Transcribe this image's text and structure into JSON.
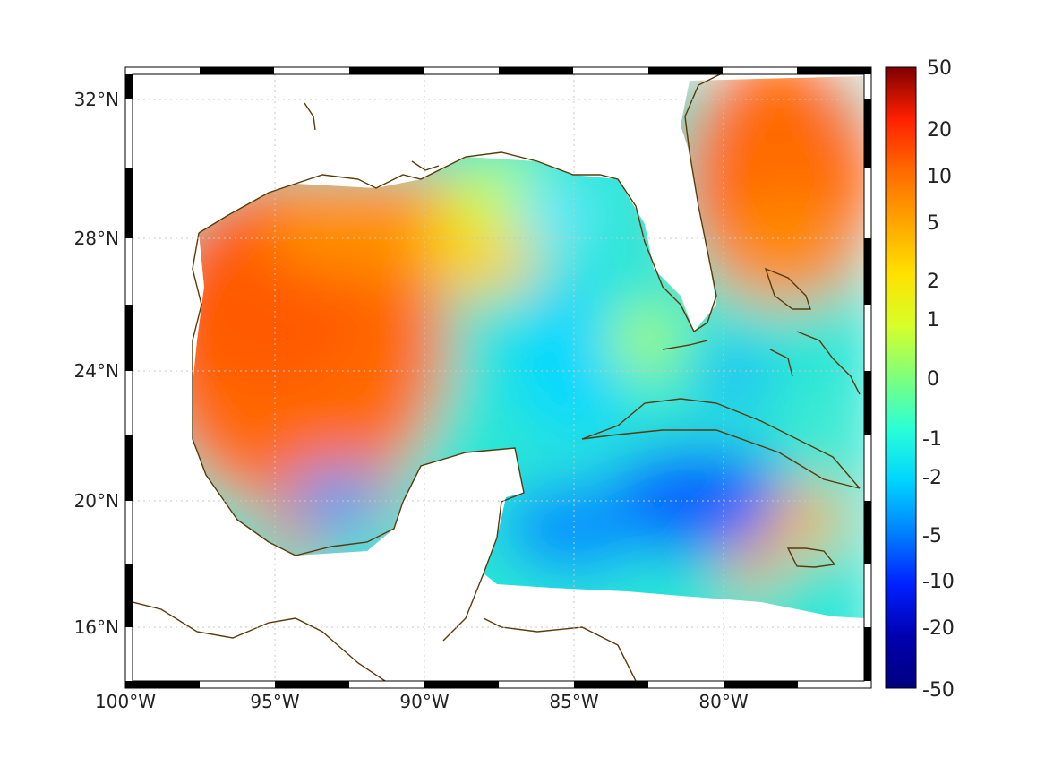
{
  "map": {
    "region": "Gulf of Mexico and Caribbean",
    "lon_range": [
      -100,
      -75
    ],
    "lat_range": [
      14.2,
      33
    ],
    "lon_ticks": [
      "100°W",
      "95°W",
      "90°W",
      "85°W",
      "80°W"
    ],
    "lat_ticks": [
      "32°N",
      "28°N",
      "24°N",
      "20°N",
      "16°N"
    ],
    "grid": true,
    "colormap": "jet",
    "coastline_color": "#5a3a0a",
    "land_color": "#ffffff"
  },
  "colorbar": {
    "labels": [
      "50",
      "20",
      "10",
      "5",
      "2",
      "1",
      "0",
      "-1",
      "-2",
      "-5",
      "-10",
      "-20",
      "-50"
    ],
    "colors": [
      "#800000",
      "#ff2000",
      "#ff6a00",
      "#ffa500",
      "#ffe100",
      "#d6ff29",
      "#7dff7d",
      "#29ffd6",
      "#00d4ff",
      "#0080ff",
      "#0020ff",
      "#0000b0",
      "#000080"
    ]
  },
  "chart_data": {
    "type": "heatmap",
    "title": "",
    "xlabel": "",
    "ylabel": "",
    "x_ticks": [
      "100°W",
      "95°W",
      "90°W",
      "85°W",
      "80°W"
    ],
    "y_ticks": [
      "32°N",
      "28°N",
      "24°N",
      "20°N",
      "16°N"
    ],
    "color_scale_labels": [
      "50",
      "20",
      "10",
      "5",
      "2",
      "1",
      "0",
      "-1",
      "-2",
      "-5",
      "-10",
      "-20",
      "-50"
    ],
    "regions": [
      {
        "area": "western Gulf of Mexico",
        "value_range": [
          5,
          10
        ]
      },
      {
        "area": "northern central Gulf",
        "value_range": [
          2,
          5
        ]
      },
      {
        "area": "eastern Gulf",
        "value_range": [
          -2,
          1
        ]
      },
      {
        "area": "Atlantic east of Florida",
        "value_range": [
          5,
          10
        ]
      },
      {
        "area": "Bay of Campeche",
        "value_range": [
          -5,
          -1
        ]
      },
      {
        "area": "Yucatan Channel / NW Caribbean",
        "value_range": [
          -10,
          -2
        ]
      },
      {
        "area": "south of Cuba",
        "value_range": [
          -10,
          -5
        ]
      },
      {
        "area": "south of Jamaica",
        "value_range": [
          2,
          10
        ]
      }
    ]
  }
}
